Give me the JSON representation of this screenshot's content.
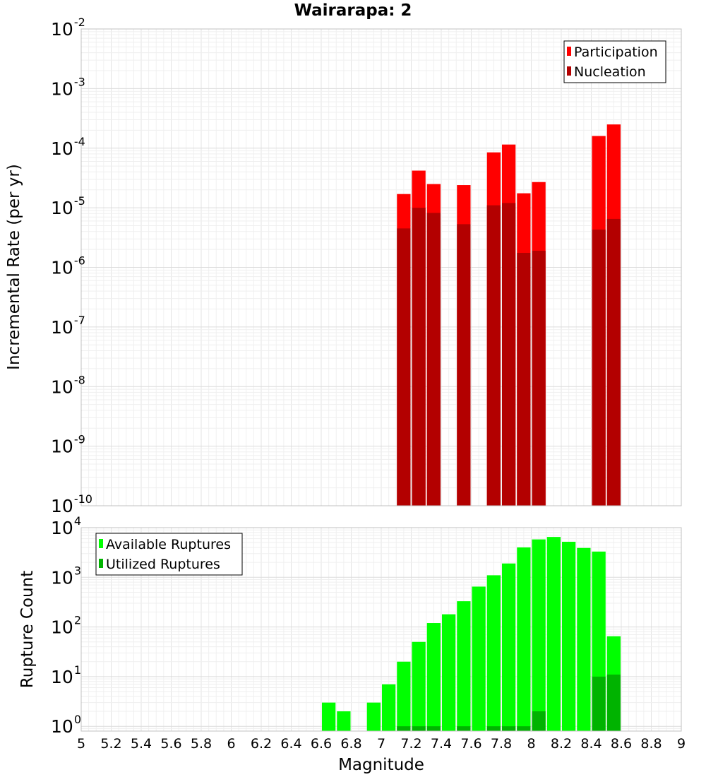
{
  "chart_data": [
    {
      "type": "bar",
      "title": "Wairarapa: 2",
      "xlabel": "Magnitude",
      "ylabel": "Incremental Rate (per yr)",
      "yscale": "log",
      "xlim": [
        5,
        9
      ],
      "ylim": [
        1e-10,
        0.01
      ],
      "y_tick_exponents": [
        -10,
        -9,
        -8,
        -7,
        -6,
        -5,
        -4,
        -3,
        -2
      ],
      "legend_position": "top-right",
      "bar_width": 0.1,
      "series": [
        {
          "name": "Participation",
          "color": "#ff0000",
          "points": [
            {
              "x": 7.15,
              "y": 1.7e-05
            },
            {
              "x": 7.25,
              "y": 4.2e-05
            },
            {
              "x": 7.35,
              "y": 2.5e-05
            },
            {
              "x": 7.55,
              "y": 2.4e-05
            },
            {
              "x": 7.75,
              "y": 8.5e-05
            },
            {
              "x": 7.85,
              "y": 0.000115
            },
            {
              "x": 7.95,
              "y": 1.75e-05
            },
            {
              "x": 8.05,
              "y": 2.7e-05
            },
            {
              "x": 8.45,
              "y": 0.00016
            },
            {
              "x": 8.55,
              "y": 0.00025
            }
          ]
        },
        {
          "name": "Nucleation",
          "color": "#b30000",
          "points": [
            {
              "x": 7.15,
              "y": 4.5e-06
            },
            {
              "x": 7.25,
              "y": 1e-05
            },
            {
              "x": 7.35,
              "y": 8.2e-06
            },
            {
              "x": 7.55,
              "y": 5.3e-06
            },
            {
              "x": 7.75,
              "y": 1.1e-05
            },
            {
              "x": 7.85,
              "y": 1.2e-05
            },
            {
              "x": 7.95,
              "y": 1.75e-06
            },
            {
              "x": 8.05,
              "y": 1.9e-06
            },
            {
              "x": 8.45,
              "y": 4.3e-06
            },
            {
              "x": 8.55,
              "y": 6.5e-06
            }
          ]
        }
      ]
    },
    {
      "type": "bar",
      "title": "",
      "xlabel": "Magnitude",
      "ylabel": "Rupture Count",
      "yscale": "log",
      "xlim": [
        5,
        9
      ],
      "ylim": [
        0.8,
        10000
      ],
      "y_tick_exponents": [
        0,
        1,
        2,
        3,
        4
      ],
      "x_ticks": [
        "5",
        "5.2",
        "5.4",
        "5.6",
        "5.8",
        "6",
        "6.2",
        "6.4",
        "6.6",
        "6.8",
        "7",
        "7.2",
        "7.4",
        "7.6",
        "7.8",
        "8",
        "8.2",
        "8.4",
        "8.6",
        "8.8",
        "9"
      ],
      "legend_position": "top-left",
      "bar_width": 0.1,
      "series": [
        {
          "name": "Available Ruptures",
          "color": "#00ff00",
          "points": [
            {
              "x": 6.65,
              "y": 3
            },
            {
              "x": 6.75,
              "y": 2
            },
            {
              "x": 6.95,
              "y": 3
            },
            {
              "x": 7.05,
              "y": 7
            },
            {
              "x": 7.15,
              "y": 20
            },
            {
              "x": 7.25,
              "y": 50
            },
            {
              "x": 7.35,
              "y": 120
            },
            {
              "x": 7.45,
              "y": 180
            },
            {
              "x": 7.55,
              "y": 330
            },
            {
              "x": 7.65,
              "y": 650
            },
            {
              "x": 7.75,
              "y": 1100
            },
            {
              "x": 7.85,
              "y": 1900
            },
            {
              "x": 7.95,
              "y": 4000
            },
            {
              "x": 8.05,
              "y": 5800
            },
            {
              "x": 8.15,
              "y": 6500
            },
            {
              "x": 8.25,
              "y": 5200
            },
            {
              "x": 8.35,
              "y": 3900
            },
            {
              "x": 8.45,
              "y": 3300
            },
            {
              "x": 8.55,
              "y": 65
            }
          ]
        },
        {
          "name": "Utilized Ruptures",
          "color": "#00b300",
          "points": [
            {
              "x": 7.15,
              "y": 1
            },
            {
              "x": 7.25,
              "y": 1
            },
            {
              "x": 7.35,
              "y": 1
            },
            {
              "x": 7.55,
              "y": 1
            },
            {
              "x": 7.75,
              "y": 1
            },
            {
              "x": 7.85,
              "y": 1
            },
            {
              "x": 7.95,
              "y": 1
            },
            {
              "x": 8.05,
              "y": 2
            },
            {
              "x": 8.45,
              "y": 10
            },
            {
              "x": 8.55,
              "y": 11
            }
          ]
        }
      ]
    }
  ]
}
